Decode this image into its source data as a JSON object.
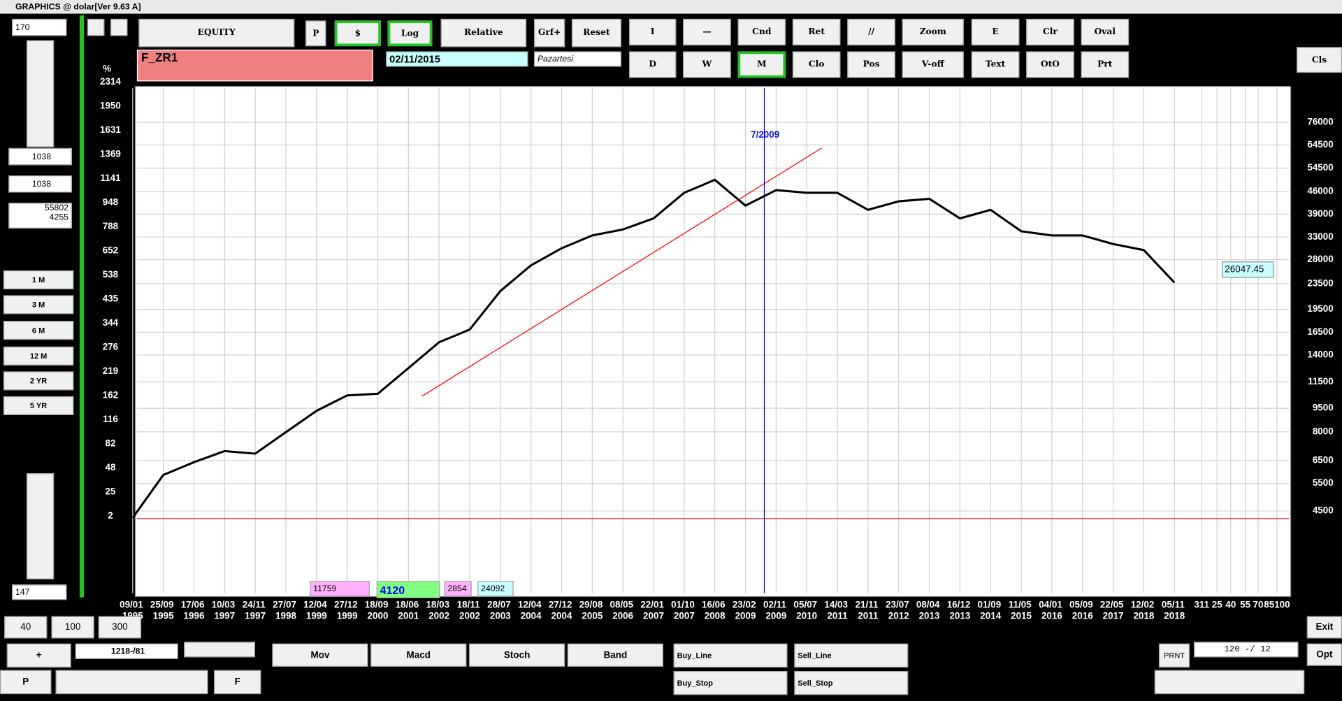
{
  "window": {
    "title": "GRAPHICS  @ dolar[Ver 9.63 A]"
  },
  "toolbar": [
    "EQUITY",
    "P",
    "$",
    "Log",
    "Relative",
    "Grf+",
    "Reset",
    "I",
    "—",
    "Cnd",
    "Ret",
    "//",
    "Zoom",
    "E",
    "Clr",
    "Oval",
    "D",
    "W",
    "M",
    "Clo",
    "Pos",
    "V-off",
    "Text",
    "OtO",
    "Prt",
    "Cls"
  ],
  "symbol_panel": {
    "symbol": "F_ZR1",
    "date": "02/11/2015",
    "day": "Pazartesi"
  },
  "left_panel": {
    "top_value": "170",
    "value_1": "1038",
    "value_2": "1038",
    "capital": "55802",
    "periods": [
      "1 M",
      "3 M",
      "6 M",
      "12 M",
      "2 YR",
      "5 YR"
    ],
    "bottom_value": "147"
  },
  "bottom_boxes": [
    "11759",
    "4120",
    "2854",
    "24092"
  ],
  "bottom_controls": {
    "zoom_buttons": [
      "40",
      "100",
      "300"
    ],
    "plus": "+",
    "range": "1218-/81",
    "p": "P",
    "f": "F",
    "indicators": [
      "Mov",
      "Macd",
      "Stoch",
      "Band"
    ],
    "orders": [
      "Buy_Line",
      "Sell_Line",
      "Buy_Stop",
      "Sell_Stop"
    ],
    "prnt": "PRNT",
    "setting": "120 -/ 12",
    "exit": "Exit",
    "opt": "Opt"
  },
  "chart_data": {
    "type": "line",
    "color": "#000000",
    "y_unit": "%",
    "left_axis_labels": [
      2314,
      1950,
      1631,
      1369,
      1141,
      948,
      788,
      652,
      538,
      435,
      344,
      276,
      219,
      162,
      116,
      82,
      48,
      25,
      2
    ],
    "categories": [
      "09/01 1995",
      "25/09 1995",
      "17/06 1996",
      "10/03 1997",
      "24/11 1997",
      "27/07 1998",
      "12/04 1999",
      "27/12 1999",
      "18/09 2000",
      "18/06 2001",
      "18/03 2002",
      "18/11 2002",
      "28/07 2003",
      "12/04 2004",
      "27/12 2004",
      "29/08 2005",
      "08/05 2006",
      "22/01 2007",
      "01/10 2007",
      "16/06 2008",
      "23/02 2009",
      "02/11 2009",
      "05/07 2010",
      "14/03 2011",
      "21/11 2011",
      "23/07 2012",
      "08/04 2013",
      "16/12 2013",
      "01/09 2014",
      "11/05 2015",
      "04/01 2016",
      "05/09 2016",
      "22/05 2017",
      "12/02 2018",
      "05/11 2018"
    ],
    "values": [
      4280,
      5845,
      6417,
      6957,
      6827,
      7980,
      9320,
      10427,
      10553,
      12722,
      15350,
      16840,
      22280,
      26860,
      30420,
      33390,
      34880,
      37800,
      45540,
      50040,
      41490,
      46440,
      45540,
      45540,
      40230,
      42800,
      43600,
      37800,
      40230,
      34430,
      33390,
      33390,
      31370,
      30020,
      23700
    ],
    "extra_x_labels": [
      "311",
      "25",
      "40",
      "55",
      "70",
      "85100"
    ],
    "yscale": "log",
    "ylim": [
      2476,
      97500
    ],
    "yticks": [
      4500,
      5500,
      6500,
      8000,
      9500,
      11500,
      14000,
      16500,
      19500,
      23500,
      28000,
      33000,
      39000,
      46000,
      54500,
      64500,
      76000
    ],
    "grid": true,
    "base_value": 4255,
    "last_value": 26047.45,
    "annotation": "7/2009"
  }
}
